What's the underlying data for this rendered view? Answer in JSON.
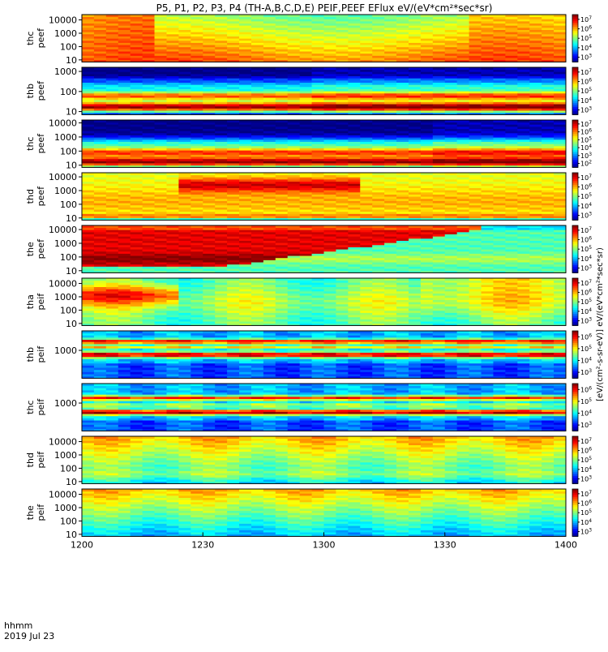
{
  "chart_data": {
    "type": "heatmap",
    "title": "P5, P1, P2, P3, P4 (TH-A,B,C,D,E) PEIF,PEEF EFlux eV/(eV*cm²*sec*sr)",
    "x_axis": {
      "corner_label": "hhmm",
      "date_label": "2019 Jul 23",
      "range": [
        1200,
        1400
      ],
      "ticks": [
        "1200",
        "1230",
        "1300",
        "1330",
        "1400"
      ]
    },
    "colorbar_label": "[eV/(cm²-s-sr-eV)] eV/(eV*cm²*sec*sr)",
    "colormap": "rainbow",
    "panels": [
      {
        "probe": "thc",
        "product": "peef",
        "ylabels": [
          "thc",
          "peef"
        ],
        "y_ticks": [
          "10",
          "100",
          "1000",
          "10000"
        ],
        "y_range": [
          7,
          25000
        ],
        "cbar_exponents": [
          3,
          4,
          5,
          6,
          7
        ]
      },
      {
        "probe": "thb",
        "product": "peef",
        "ylabels": [
          "thb",
          "peef"
        ],
        "y_ticks": [
          "10",
          "100",
          "1000"
        ],
        "y_range": [
          7,
          1600
        ],
        "cbar_exponents": [
          3,
          4,
          5,
          6,
          7
        ]
      },
      {
        "probe": "thc",
        "product": "peef",
        "ylabels": [
          "thc",
          "peef"
        ],
        "y_ticks": [
          "10",
          "100",
          "1000",
          "10000"
        ],
        "y_range": [
          7,
          16000
        ],
        "cbar_exponents": [
          2,
          3,
          4,
          5,
          6,
          7
        ]
      },
      {
        "probe": "thd",
        "product": "peef",
        "ylabels": [
          "thd",
          "peef"
        ],
        "y_ticks": [
          "10",
          "100",
          "1000",
          "10000"
        ],
        "y_range": [
          7,
          20000
        ],
        "cbar_exponents": [
          3,
          4,
          5,
          6,
          7
        ]
      },
      {
        "probe": "the",
        "product": "peef",
        "ylabels": [
          "the",
          "peef"
        ],
        "y_ticks": [
          "10",
          "100",
          "1000",
          "10000"
        ],
        "y_range": [
          7,
          20000
        ],
        "cbar_exponents": [
          3,
          4,
          5,
          6,
          7
        ]
      },
      {
        "probe": "tha",
        "product": "peif",
        "ylabels": [
          "tha",
          "peif"
        ],
        "y_ticks": [
          "10",
          "100",
          "1000",
          "10000"
        ],
        "y_range": [
          7,
          25000
        ],
        "cbar_exponents": [
          3,
          4,
          5,
          6,
          7
        ]
      },
      {
        "probe": "thb",
        "product": "peif",
        "ylabels": [
          "thb",
          "peif"
        ],
        "y_ticks": [
          "1000"
        ],
        "y_range": [
          10,
          25000
        ],
        "cbar_exponents": [
          3,
          4,
          5,
          6
        ]
      },
      {
        "probe": "thc",
        "product": "peif",
        "ylabels": [
          "thc",
          "peif"
        ],
        "y_ticks": [
          "1000"
        ],
        "y_range": [
          10,
          25000
        ],
        "cbar_exponents": [
          3,
          4,
          5,
          6
        ]
      },
      {
        "probe": "thd",
        "product": "peif",
        "ylabels": [
          "thd",
          "peif"
        ],
        "y_ticks": [
          "10",
          "100",
          "1000",
          "10000"
        ],
        "y_range": [
          7,
          25000
        ],
        "cbar_exponents": [
          3,
          4,
          5,
          6,
          7
        ]
      },
      {
        "probe": "the",
        "product": "peif",
        "ylabels": [
          "the",
          "peif"
        ],
        "y_ticks": [
          "10",
          "100",
          "1000",
          "10000"
        ],
        "y_range": [
          7,
          25000
        ],
        "cbar_exponents": [
          3,
          4,
          5,
          6,
          7
        ]
      }
    ],
    "grid": false
  }
}
